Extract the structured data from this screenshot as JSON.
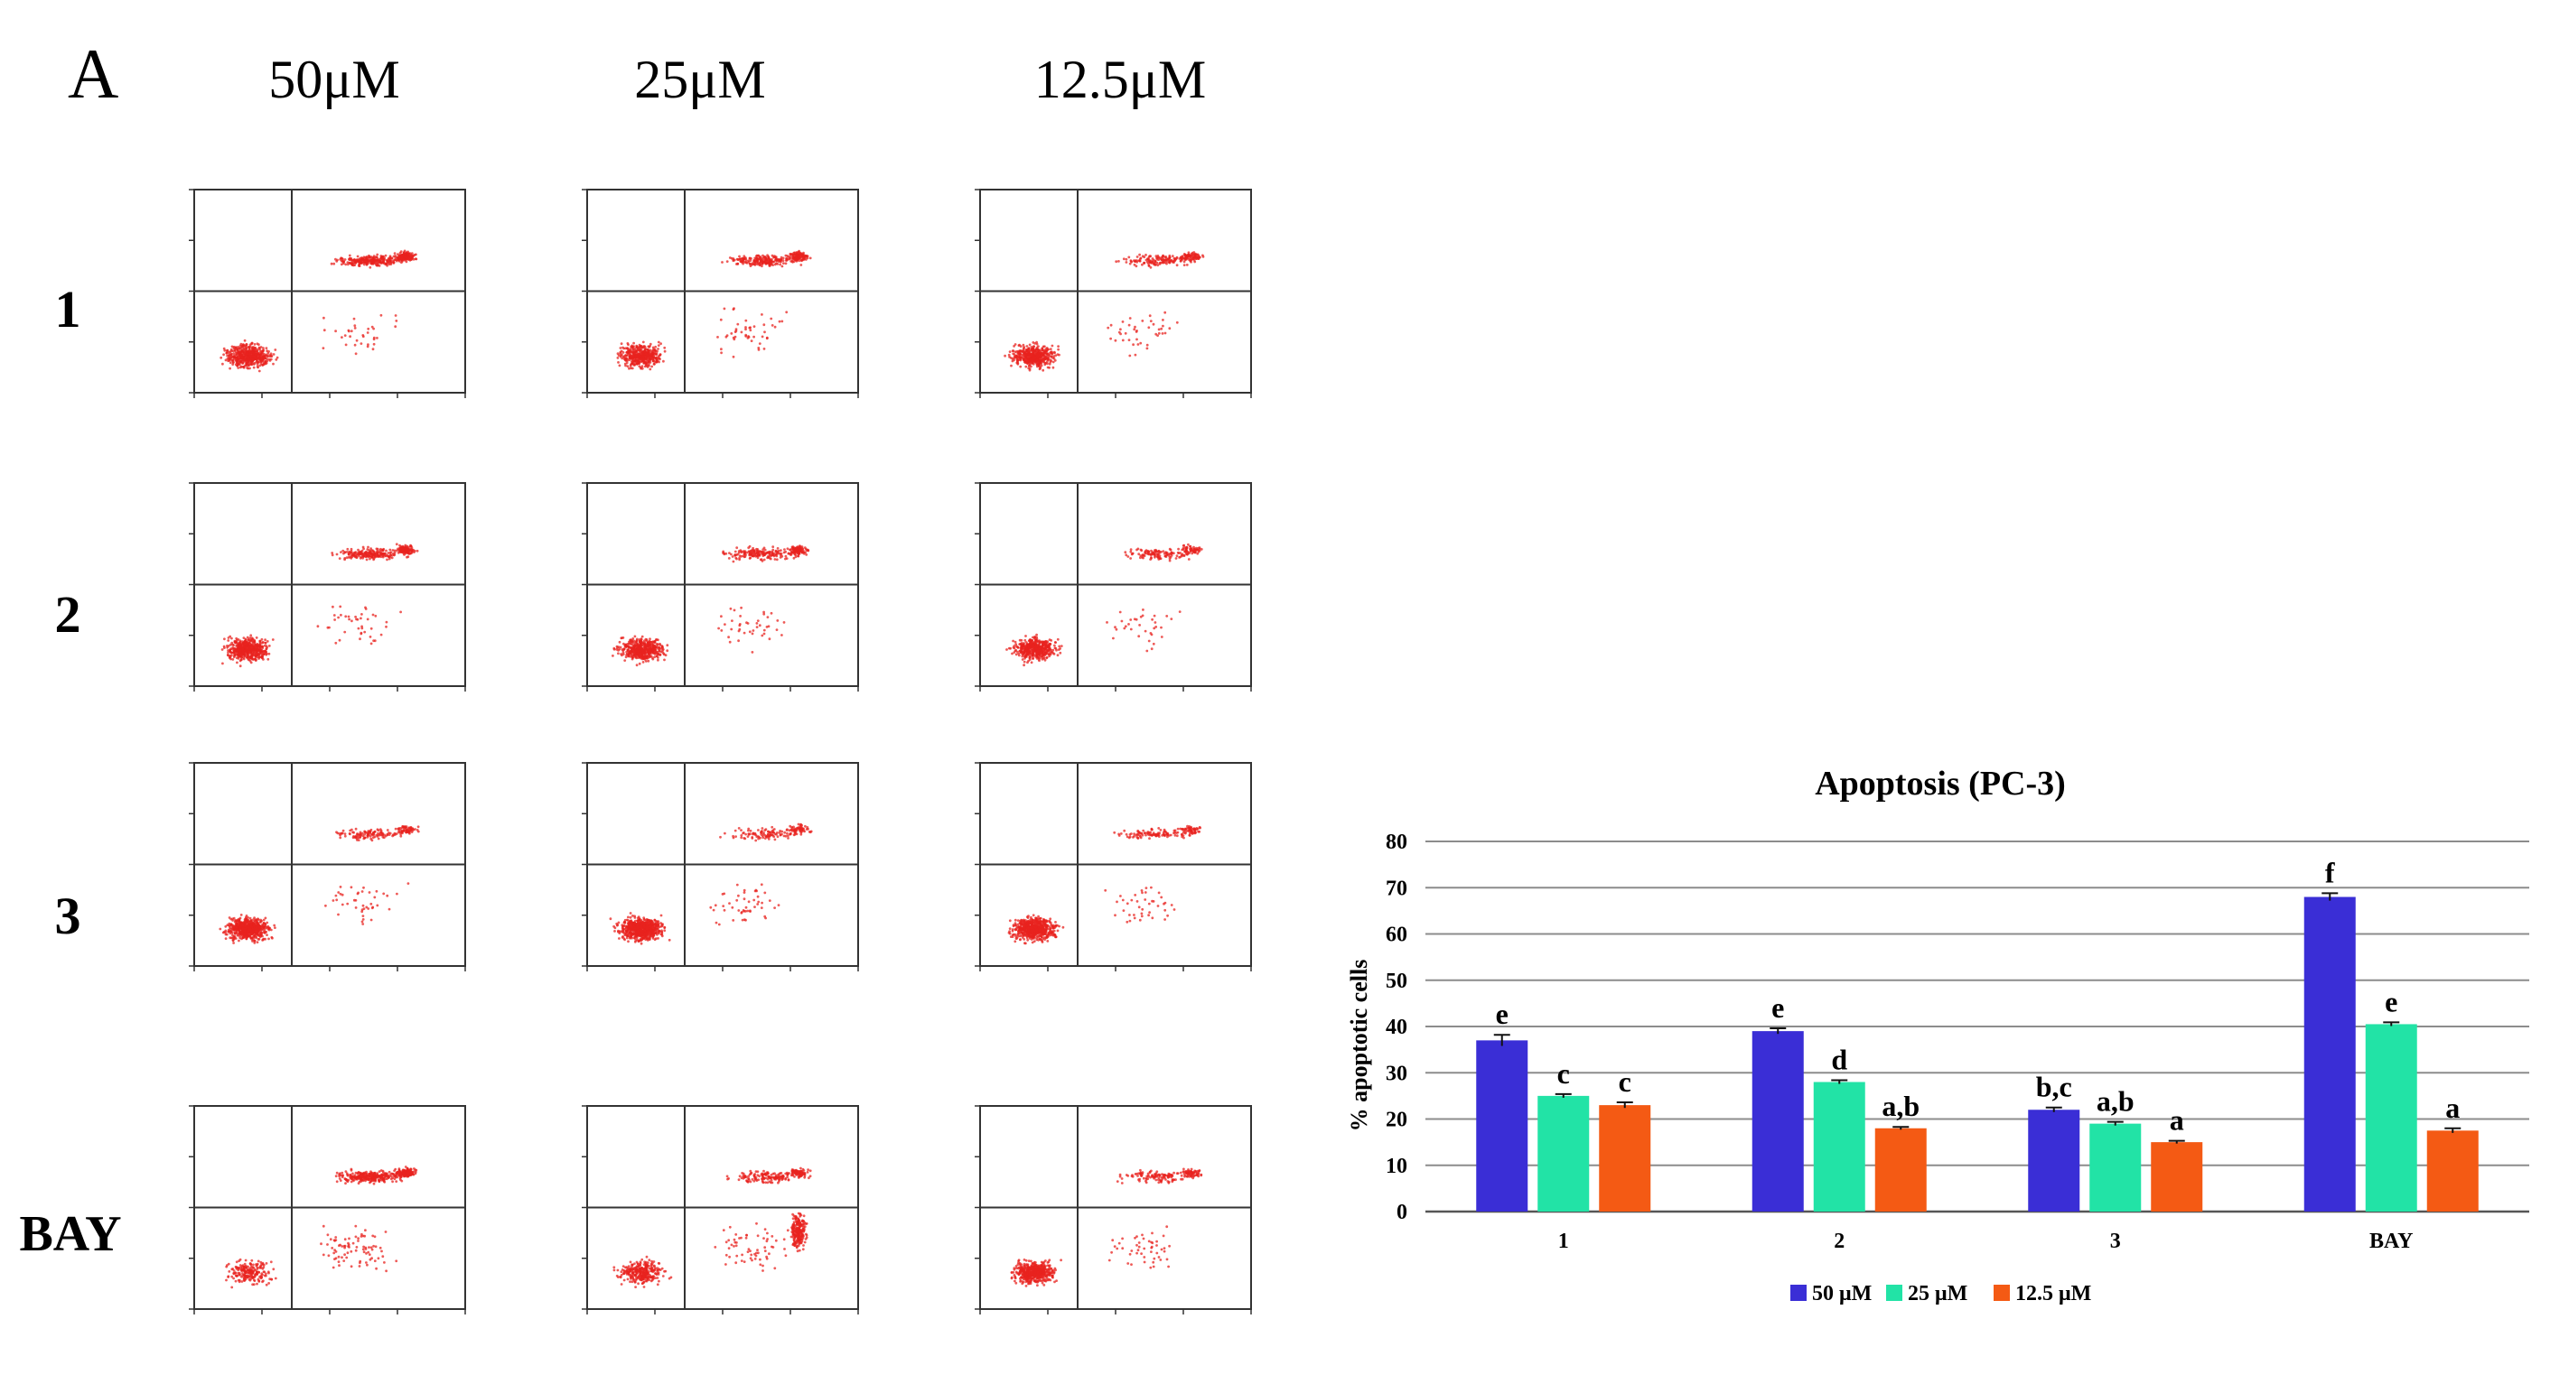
{
  "panel_label": "A",
  "columns": [
    "50μM",
    "25μM",
    "12.5μM"
  ],
  "rows": [
    "1",
    "2",
    "3",
    "BAY"
  ],
  "flow_colors": {
    "dot": "#e8231f",
    "frame": "#333333"
  },
  "chart_data": {
    "type": "bar",
    "title": "Apoptosis (PC-3)",
    "xlabel": "",
    "ylabel": "% apoptotic cells",
    "ylim": [
      0,
      80
    ],
    "yticks": [
      0,
      10,
      20,
      30,
      40,
      50,
      60,
      70,
      80
    ],
    "categories": [
      "1",
      "2",
      "3",
      "BAY"
    ],
    "legend_position": "bottom",
    "grid": true,
    "series": [
      {
        "name": "50 μM",
        "color": "#3a2ed6",
        "values": [
          37,
          39,
          22,
          68
        ],
        "errors": [
          1.2,
          0.6,
          0.5,
          0.8
        ],
        "labels": [
          "e",
          "e",
          "b,c",
          "f"
        ]
      },
      {
        "name": "25 μM",
        "color": "#22e3a6",
        "values": [
          25,
          28,
          19,
          40.5
        ],
        "errors": [
          0.4,
          0.4,
          0.4,
          0.4
        ],
        "labels": [
          "c",
          "d",
          "a,b",
          "e"
        ]
      },
      {
        "name": "12.5 μM",
        "color": "#f45a14",
        "values": [
          23,
          18,
          15,
          17.5
        ],
        "errors": [
          0.6,
          0.3,
          0.3,
          0.5
        ],
        "labels": [
          "c",
          "a,b",
          "a",
          "a"
        ]
      }
    ]
  }
}
